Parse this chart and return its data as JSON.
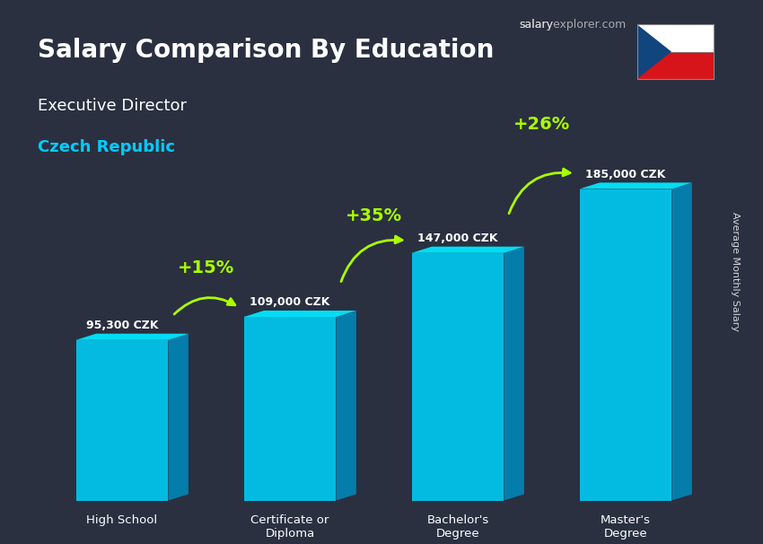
{
  "title": "Salary Comparison By Education",
  "subtitle": "Executive Director",
  "country": "Czech Republic",
  "categories": [
    "High School",
    "Certificate or\nDiploma",
    "Bachelor's\nDegree",
    "Master's\nDegree"
  ],
  "values": [
    95300,
    109000,
    147000,
    185000
  ],
  "value_labels": [
    "95,300 CZK",
    "109,000 CZK",
    "147,000 CZK",
    "185,000 CZK"
  ],
  "pct_changes": [
    "+15%",
    "+35%",
    "+26%"
  ],
  "bar_color_top": "#00d4ff",
  "bar_color_mid": "#00aadd",
  "bar_color_bottom": "#0077aa",
  "bar_color_side": "#005588",
  "background_color": "#1a1a2e",
  "title_color": "#ffffff",
  "subtitle_color": "#ffffff",
  "country_color": "#00ccff",
  "value_label_color": "#ffffff",
  "pct_color": "#aaff00",
  "arrow_color": "#aaff00",
  "xlabel_color": "#ffffff",
  "site_text": "salaryexplorer.com",
  "ylabel_text": "Average Monthly Salary",
  "ylim": [
    0,
    210000
  ]
}
